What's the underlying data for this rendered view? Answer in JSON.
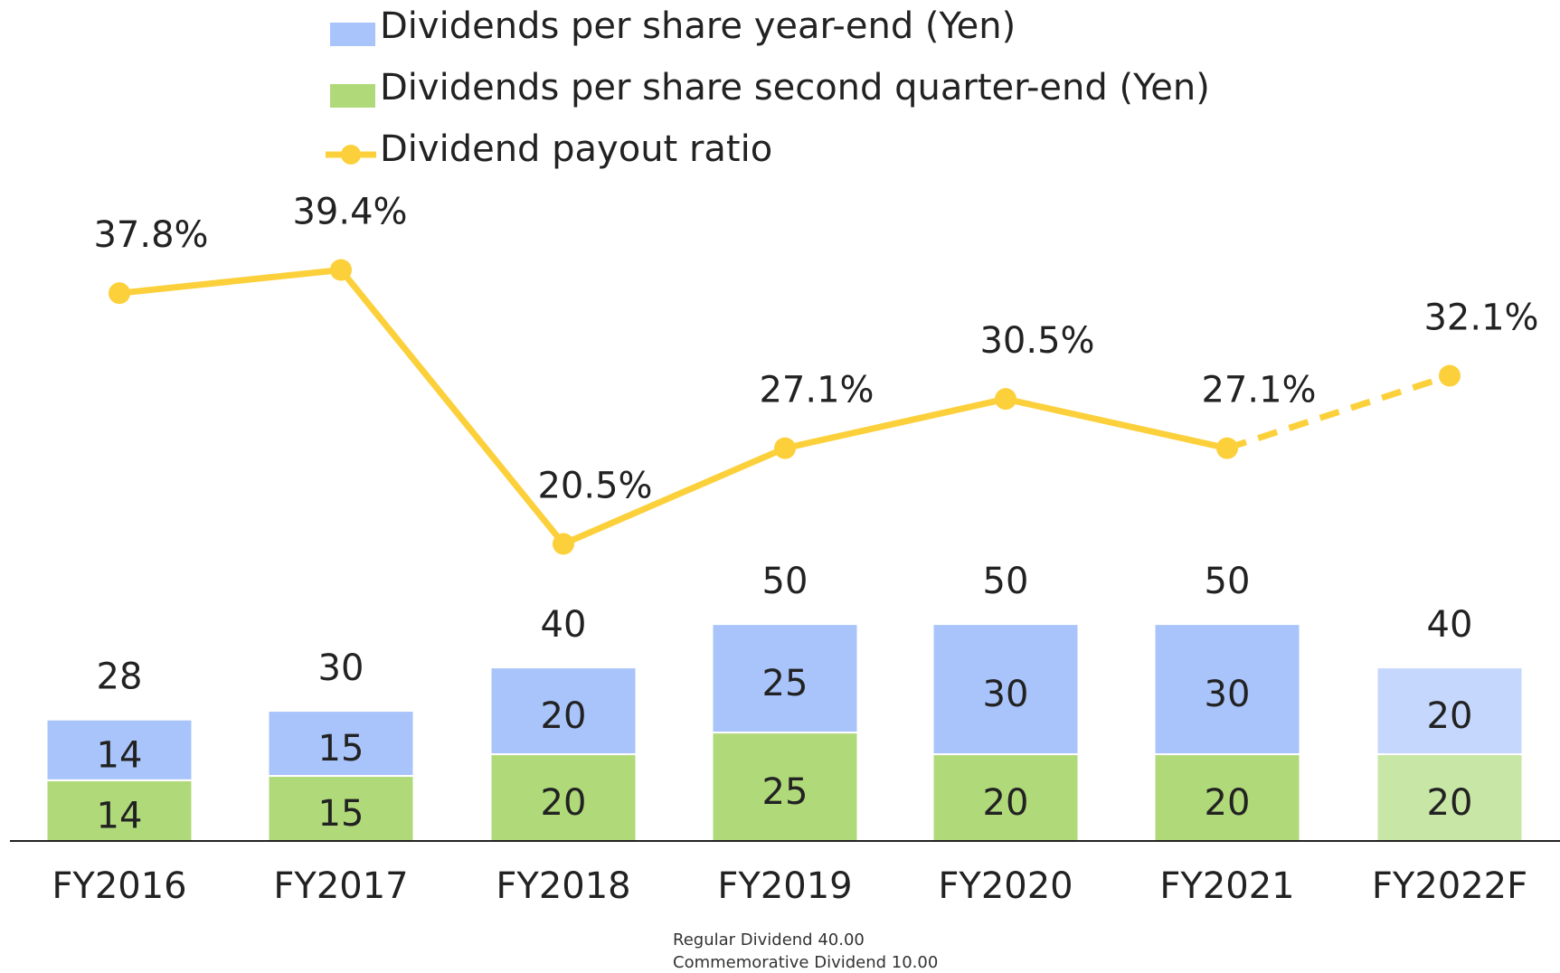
{
  "chart_data": {
    "type": "bar-line",
    "categories": [
      "FY2016",
      "FY2017",
      "FY2018",
      "FY2019",
      "FY2020",
      "FY2021",
      "FY2022F"
    ],
    "series": [
      {
        "name": "Dividends per share second quarter-end (Yen)",
        "color": "#b0d97a",
        "forecast_color": "#c8e6a6",
        "values": [
          14,
          15,
          20,
          25,
          20,
          20,
          20
        ]
      },
      {
        "name": "Dividends per share year-end (Yen)",
        "color": "#a9c4fa",
        "forecast_color": "#c5d7fc",
        "values": [
          14,
          15,
          20,
          25,
          30,
          30,
          20
        ]
      },
      {
        "name": "Dividend payout ratio",
        "color": "#fcd03a",
        "axis": "y2",
        "values": [
          37.8,
          39.4,
          20.5,
          27.1,
          30.5,
          27.1,
          32.1
        ],
        "value_labels": [
          "37.8%",
          "39.4%",
          "20.5%",
          "27.1%",
          "30.5%",
          "27.1%",
          "32.1%"
        ]
      }
    ],
    "totals": [
      28,
      30,
      40,
      50,
      50,
      50,
      40
    ],
    "legend_order": [
      1,
      0,
      2
    ],
    "forecast_index": 6,
    "annotations": [
      "Regular Dividend 40.00",
      "Commemorative Dividend 10.00"
    ],
    "annotation_index": 3,
    "ylim": [
      0,
      148
    ],
    "y2lim": [
      0,
      44.3
    ]
  }
}
